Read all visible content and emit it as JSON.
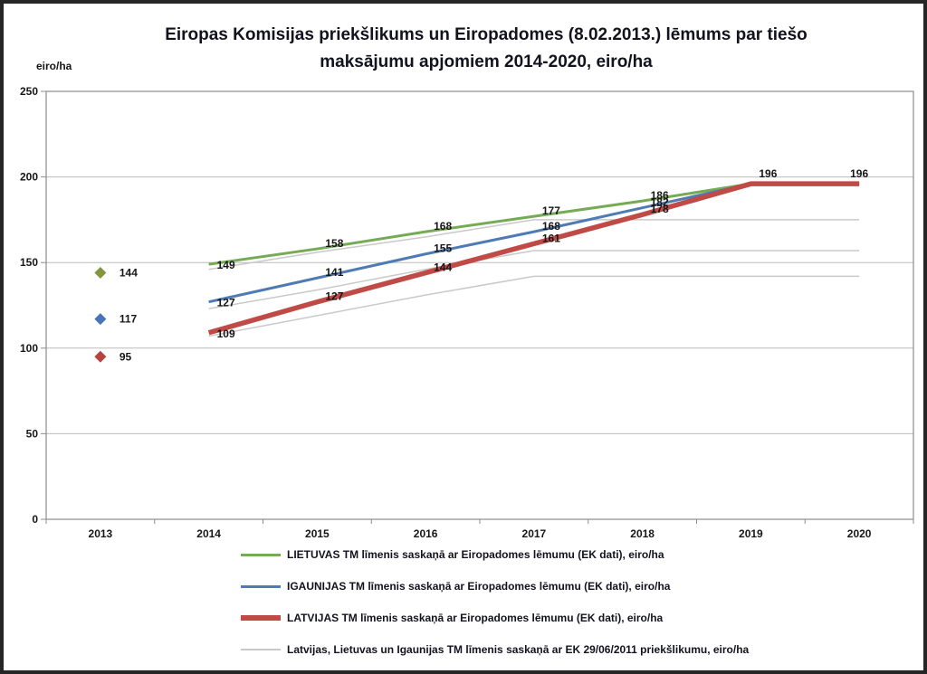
{
  "page": {
    "background": "#ffffff",
    "border_color": "#262626",
    "text_color": "#161616",
    "grid_color": "#bbbbbb",
    "axis_color": "#8c8c8c"
  },
  "chart_data": {
    "type": "line",
    "title": "Eiropas Komisijas priekšlikums un Eiropadomes (8.02.2013.) lēmums par tiešo maksājumu apjomiem 2014-2020, eiro/ha",
    "title_lines": [
      "Eiropas Komisijas priekšlikums un Eiropadomes (8.02.2013.) lēmums par tiešo",
      "maksājumu apjomiem 2014-2020, eiro/ha"
    ],
    "ylabel": "eiro/ha",
    "xlabel": "",
    "categories": [
      "2013",
      "2014",
      "2015",
      "2016",
      "2017",
      "2018",
      "2019",
      "2020"
    ],
    "ylim": [
      0,
      250
    ],
    "yticks": [
      0,
      50,
      100,
      150,
      200,
      250
    ],
    "grid": true,
    "legend_position": "bottom",
    "series": [
      {
        "name": "LIETUVAS TM līmenis saskaņā ar Eiropadomes lēmumu (EK dati), eiro/ha",
        "country": "Lietuva",
        "color": "#76ab56",
        "line_width": 3,
        "start_year": "2014",
        "x": [
          "2014",
          "2015",
          "2016",
          "2017",
          "2018",
          "2019",
          "2020"
        ],
        "values": [
          149,
          158,
          168,
          177,
          186,
          196,
          196
        ],
        "data_labels": true
      },
      {
        "name": "IGAUNIJAS TM līmenis saskaņā ar Eiropadomes lēmumu (EK dati), eiro/ha",
        "country": "Igaunija",
        "color": "#4f7bb5",
        "line_width": 3,
        "start_year": "2014",
        "x": [
          "2014",
          "2015",
          "2016",
          "2017",
          "2018",
          "2019",
          "2020"
        ],
        "values": [
          127,
          141,
          155,
          168,
          182,
          196,
          196
        ],
        "data_labels": true
      },
      {
        "name": "LATVIJAS TM līmenis saskaņā ar Eiropadomes lēmumu (EK dati), eiro/ha",
        "country": "Latvija",
        "color": "#bf4a46",
        "line_width": 5.5,
        "start_year": "2014",
        "x": [
          "2014",
          "2015",
          "2016",
          "2017",
          "2018",
          "2019",
          "2020"
        ],
        "values": [
          109,
          127,
          144,
          161,
          178,
          196,
          196
        ],
        "data_labels": true
      },
      {
        "name": "Latvijas, Lietuvas un Igaunijas TM līmenis saskaņā ar EK 29/06/2011 priekšlikumu, eiro/ha",
        "country": "Latvija, Lietuva un Igaunija (EK 29/06/2011 priekšlikums)",
        "color": "#c9c9c9",
        "line_width": 1.5,
        "start_year": "2014",
        "x": [
          "2014",
          "2015",
          "2016",
          "2017",
          "2018",
          "2019",
          "2020"
        ],
        "lines": [
          [
            146,
            156,
            165,
            175,
            175,
            175,
            175
          ],
          [
            123,
            134,
            146,
            157,
            157,
            157,
            157
          ],
          [
            107,
            119,
            131,
            142,
            142,
            142,
            142
          ]
        ],
        "data_labels": false
      }
    ],
    "markers_2013": [
      {
        "value": 144,
        "label": "144",
        "color": "#85963f",
        "shape": "diamond"
      },
      {
        "value": 117,
        "label": "117",
        "color": "#4b74b8",
        "shape": "diamond"
      },
      {
        "value": 95,
        "label": "95",
        "color": "#b5433f",
        "shape": "diamond"
      }
    ]
  }
}
